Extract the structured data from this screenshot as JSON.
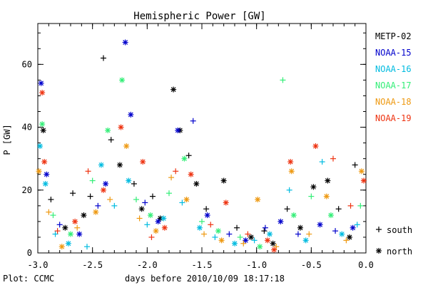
{
  "chart_data": {
    "type": "scatter",
    "title": "Hemispheric Power [GW]",
    "xlabel": "days before 2010/10/09 18:17:18",
    "ylabel": "P [GW]",
    "xlim": [
      -3.0,
      0.0
    ],
    "ylim": [
      0,
      73
    ],
    "x_ticks": [
      "-3.0",
      "-2.5",
      "-2.0",
      "-1.5",
      "-1.0",
      "-0.5",
      "0.0"
    ],
    "y_ticks": [
      "0",
      "20",
      "40",
      "60"
    ],
    "footer": "Plot: CCMC",
    "legend_placement": "right",
    "symbol_legend": [
      {
        "symbol": "+",
        "label": "south"
      },
      {
        "symbol": "*",
        "label": "north"
      }
    ],
    "series": [
      {
        "name": "METP-02",
        "color": "#000000",
        "points": [
          {
            "x": -2.95,
            "y": 39,
            "h": "north"
          },
          {
            "x": -2.88,
            "y": 17,
            "h": "south"
          },
          {
            "x": -2.75,
            "y": 8,
            "h": "north"
          },
          {
            "x": -2.68,
            "y": 19,
            "h": "south"
          },
          {
            "x": -2.58,
            "y": 12,
            "h": "north"
          },
          {
            "x": -2.52,
            "y": 18,
            "h": "south"
          },
          {
            "x": -2.4,
            "y": 62,
            "h": "south"
          },
          {
            "x": -2.33,
            "y": 36,
            "h": "south"
          },
          {
            "x": -2.25,
            "y": 28,
            "h": "north"
          },
          {
            "x": -2.12,
            "y": 22,
            "h": "south"
          },
          {
            "x": -2.05,
            "y": 14,
            "h": "north"
          },
          {
            "x": -1.95,
            "y": 18,
            "h": "south"
          },
          {
            "x": -1.88,
            "y": 11,
            "h": "north"
          },
          {
            "x": -1.76,
            "y": 52,
            "h": "north"
          },
          {
            "x": -1.7,
            "y": 39,
            "h": "north"
          },
          {
            "x": -1.62,
            "y": 31,
            "h": "south"
          },
          {
            "x": -1.55,
            "y": 22,
            "h": "north"
          },
          {
            "x": -1.46,
            "y": 14,
            "h": "south"
          },
          {
            "x": -1.3,
            "y": 23,
            "h": "north"
          },
          {
            "x": -1.18,
            "y": 8,
            "h": "south"
          },
          {
            "x": -1.05,
            "y": 5,
            "h": "north"
          },
          {
            "x": -0.93,
            "y": 7,
            "h": "south"
          },
          {
            "x": -0.85,
            "y": 3,
            "h": "north"
          },
          {
            "x": -0.72,
            "y": 14,
            "h": "south"
          },
          {
            "x": -0.6,
            "y": 8,
            "h": "north"
          },
          {
            "x": -0.48,
            "y": 21,
            "h": "north"
          },
          {
            "x": -0.35,
            "y": 23,
            "h": "north"
          },
          {
            "x": -0.25,
            "y": 14,
            "h": "south"
          },
          {
            "x": -0.15,
            "y": 5,
            "h": "north"
          },
          {
            "x": -0.1,
            "y": 28,
            "h": "south"
          }
        ]
      },
      {
        "name": "NOAA-15",
        "color": "#0000cc",
        "points": [
          {
            "x": -2.97,
            "y": 54,
            "h": "north"
          },
          {
            "x": -2.92,
            "y": 25,
            "h": "north"
          },
          {
            "x": -2.8,
            "y": 9,
            "h": "south"
          },
          {
            "x": -2.62,
            "y": 6,
            "h": "north"
          },
          {
            "x": -2.45,
            "y": 15,
            "h": "south"
          },
          {
            "x": -2.38,
            "y": 22,
            "h": "north"
          },
          {
            "x": -2.2,
            "y": 67,
            "h": "north"
          },
          {
            "x": -2.15,
            "y": 44,
            "h": "north"
          },
          {
            "x": -2.02,
            "y": 16,
            "h": "south"
          },
          {
            "x": -1.9,
            "y": 10,
            "h": "north"
          },
          {
            "x": -1.72,
            "y": 39,
            "h": "north"
          },
          {
            "x": -1.58,
            "y": 42,
            "h": "south"
          },
          {
            "x": -1.45,
            "y": 12,
            "h": "north"
          },
          {
            "x": -1.25,
            "y": 6,
            "h": "south"
          },
          {
            "x": -1.1,
            "y": 4,
            "h": "north"
          },
          {
            "x": -0.92,
            "y": 8,
            "h": "south"
          },
          {
            "x": -0.78,
            "y": 10,
            "h": "north"
          },
          {
            "x": -0.62,
            "y": 6,
            "h": "south"
          },
          {
            "x": -0.42,
            "y": 9,
            "h": "north"
          },
          {
            "x": -0.28,
            "y": 7,
            "h": "south"
          },
          {
            "x": -0.12,
            "y": 8,
            "h": "north"
          }
        ]
      },
      {
        "name": "NOAA-16",
        "color": "#00bbe0",
        "points": [
          {
            "x": -2.98,
            "y": 34,
            "h": "north"
          },
          {
            "x": -2.93,
            "y": 22,
            "h": "north"
          },
          {
            "x": -2.84,
            "y": 6,
            "h": "south"
          },
          {
            "x": -2.72,
            "y": 3,
            "h": "north"
          },
          {
            "x": -2.55,
            "y": 2,
            "h": "south"
          },
          {
            "x": -2.42,
            "y": 28,
            "h": "north"
          },
          {
            "x": -2.3,
            "y": 15,
            "h": "south"
          },
          {
            "x": -2.17,
            "y": 23,
            "h": "north"
          },
          {
            "x": -2.0,
            "y": 9,
            "h": "south"
          },
          {
            "x": -1.85,
            "y": 11,
            "h": "north"
          },
          {
            "x": -1.68,
            "y": 16,
            "h": "south"
          },
          {
            "x": -1.52,
            "y": 8,
            "h": "north"
          },
          {
            "x": -1.38,
            "y": 5,
            "h": "south"
          },
          {
            "x": -1.2,
            "y": 3,
            "h": "north"
          },
          {
            "x": -1.02,
            "y": 4,
            "h": "south"
          },
          {
            "x": -0.88,
            "y": 6,
            "h": "north"
          },
          {
            "x": -0.7,
            "y": 20,
            "h": "south"
          },
          {
            "x": -0.55,
            "y": 4,
            "h": "north"
          },
          {
            "x": -0.4,
            "y": 29,
            "h": "south"
          },
          {
            "x": -0.22,
            "y": 6,
            "h": "north"
          },
          {
            "x": -0.08,
            "y": 9,
            "h": "south"
          }
        ]
      },
      {
        "name": "NOAA-17",
        "color": "#33ee77",
        "points": [
          {
            "x": -2.96,
            "y": 41,
            "h": "north"
          },
          {
            "x": -2.86,
            "y": 12,
            "h": "south"
          },
          {
            "x": -2.7,
            "y": 6,
            "h": "north"
          },
          {
            "x": -2.5,
            "y": 23,
            "h": "south"
          },
          {
            "x": -2.36,
            "y": 39,
            "h": "north"
          },
          {
            "x": -2.23,
            "y": 55,
            "h": "north"
          },
          {
            "x": -2.1,
            "y": 17,
            "h": "south"
          },
          {
            "x": -1.97,
            "y": 12,
            "h": "north"
          },
          {
            "x": -1.8,
            "y": 19,
            "h": "south"
          },
          {
            "x": -1.66,
            "y": 30,
            "h": "north"
          },
          {
            "x": -1.5,
            "y": 10,
            "h": "south"
          },
          {
            "x": -1.35,
            "y": 7,
            "h": "north"
          },
          {
            "x": -1.15,
            "y": 5,
            "h": "south"
          },
          {
            "x": -0.97,
            "y": 2,
            "h": "north"
          },
          {
            "x": -0.76,
            "y": 55,
            "h": "south"
          },
          {
            "x": -0.66,
            "y": 12,
            "h": "north"
          },
          {
            "x": -0.5,
            "y": 18,
            "h": "south"
          },
          {
            "x": -0.32,
            "y": 12,
            "h": "north"
          },
          {
            "x": -0.05,
            "y": 15,
            "h": "south"
          }
        ]
      },
      {
        "name": "NOAA-18",
        "color": "#ee9911",
        "points": [
          {
            "x": -2.99,
            "y": 26,
            "h": "north"
          },
          {
            "x": -2.9,
            "y": 13,
            "h": "south"
          },
          {
            "x": -2.78,
            "y": 2,
            "h": "north"
          },
          {
            "x": -2.64,
            "y": 8,
            "h": "south"
          },
          {
            "x": -2.47,
            "y": 13,
            "h": "north"
          },
          {
            "x": -2.34,
            "y": 17,
            "h": "south"
          },
          {
            "x": -2.19,
            "y": 34,
            "h": "north"
          },
          {
            "x": -2.07,
            "y": 11,
            "h": "south"
          },
          {
            "x": -1.92,
            "y": 7,
            "h": "north"
          },
          {
            "x": -1.78,
            "y": 24,
            "h": "south"
          },
          {
            "x": -1.64,
            "y": 17,
            "h": "north"
          },
          {
            "x": -1.48,
            "y": 6,
            "h": "south"
          },
          {
            "x": -1.32,
            "y": 4,
            "h": "north"
          },
          {
            "x": -1.12,
            "y": 3,
            "h": "south"
          },
          {
            "x": -0.99,
            "y": 17,
            "h": "north"
          },
          {
            "x": -0.82,
            "y": 2,
            "h": "south"
          },
          {
            "x": -0.68,
            "y": 26,
            "h": "north"
          },
          {
            "x": -0.52,
            "y": 6,
            "h": "south"
          },
          {
            "x": -0.36,
            "y": 18,
            "h": "north"
          },
          {
            "x": -0.18,
            "y": 4,
            "h": "south"
          },
          {
            "x": -0.04,
            "y": 26,
            "h": "north"
          }
        ]
      },
      {
        "name": "NOAA-19",
        "color": "#ee3311",
        "points": [
          {
            "x": -2.96,
            "y": 51,
            "h": "north"
          },
          {
            "x": -2.94,
            "y": 29,
            "h": "north"
          },
          {
            "x": -2.82,
            "y": 7,
            "h": "south"
          },
          {
            "x": -2.66,
            "y": 10,
            "h": "north"
          },
          {
            "x": -2.54,
            "y": 26,
            "h": "south"
          },
          {
            "x": -2.4,
            "y": 20,
            "h": "north"
          },
          {
            "x": -2.24,
            "y": 40,
            "h": "north"
          },
          {
            "x": -2.04,
            "y": 29,
            "h": "north"
          },
          {
            "x": -1.96,
            "y": 5,
            "h": "south"
          },
          {
            "x": -1.84,
            "y": 8,
            "h": "north"
          },
          {
            "x": -1.74,
            "y": 26,
            "h": "south"
          },
          {
            "x": -1.6,
            "y": 25,
            "h": "north"
          },
          {
            "x": -1.42,
            "y": 9,
            "h": "south"
          },
          {
            "x": -1.28,
            "y": 16,
            "h": "north"
          },
          {
            "x": -1.08,
            "y": 6,
            "h": "south"
          },
          {
            "x": -0.9,
            "y": 4,
            "h": "north"
          },
          {
            "x": -0.84,
            "y": 1,
            "h": "north"
          },
          {
            "x": -0.69,
            "y": 29,
            "h": "north"
          },
          {
            "x": -0.46,
            "y": 34,
            "h": "north"
          },
          {
            "x": -0.3,
            "y": 30,
            "h": "south"
          },
          {
            "x": -0.14,
            "y": 15,
            "h": "south"
          },
          {
            "x": -0.02,
            "y": 23,
            "h": "north"
          }
        ]
      }
    ]
  }
}
